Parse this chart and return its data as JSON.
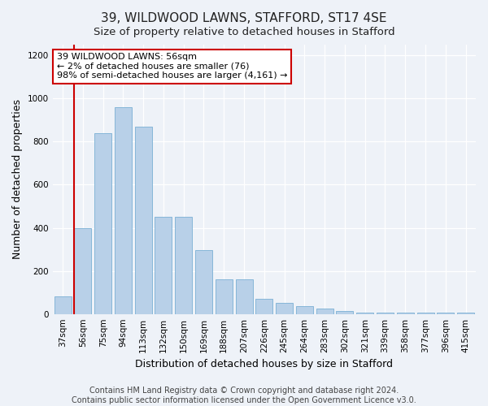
{
  "title": "39, WILDWOOD LAWNS, STAFFORD, ST17 4SE",
  "subtitle": "Size of property relative to detached houses in Stafford",
  "xlabel": "Distribution of detached houses by size in Stafford",
  "ylabel": "Number of detached properties",
  "categories": [
    "37sqm",
    "56sqm",
    "75sqm",
    "94sqm",
    "113sqm",
    "132sqm",
    "150sqm",
    "169sqm",
    "188sqm",
    "207sqm",
    "226sqm",
    "245sqm",
    "264sqm",
    "283sqm",
    "302sqm",
    "321sqm",
    "339sqm",
    "358sqm",
    "377sqm",
    "396sqm",
    "415sqm"
  ],
  "values": [
    80,
    400,
    840,
    960,
    870,
    450,
    450,
    295,
    160,
    160,
    70,
    50,
    35,
    25,
    15,
    5,
    5,
    5,
    5,
    5,
    5
  ],
  "bar_color": "#b8d0e8",
  "bar_edge_color": "#7aafd4",
  "highlight_index": 1,
  "highlight_line_color": "#cc0000",
  "annotation_line1": "39 WILDWOOD LAWNS: 56sqm",
  "annotation_line2": "← 2% of detached houses are smaller (76)",
  "annotation_line3": "98% of semi-detached houses are larger (4,161) →",
  "annotation_box_color": "#ffffff",
  "annotation_box_edge_color": "#cc0000",
  "ylim": [
    0,
    1250
  ],
  "yticks": [
    0,
    200,
    400,
    600,
    800,
    1000,
    1200
  ],
  "footer_line1": "Contains HM Land Registry data © Crown copyright and database right 2024.",
  "footer_line2": "Contains public sector information licensed under the Open Government Licence v3.0.",
  "bg_color": "#eef2f8",
  "plot_bg_color": "#eef2f8",
  "title_fontsize": 11,
  "subtitle_fontsize": 9.5,
  "axis_label_fontsize": 9,
  "tick_fontsize": 7.5,
  "footer_fontsize": 7
}
